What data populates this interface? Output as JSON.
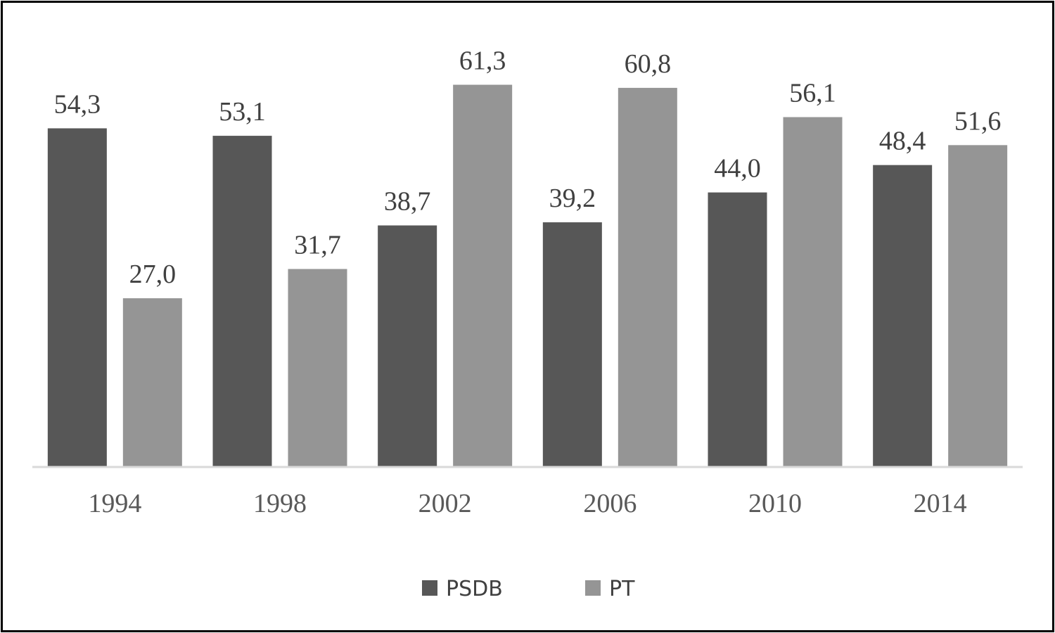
{
  "chart_data": {
    "type": "bar",
    "categories": [
      "1994",
      "1998",
      "2002",
      "2006",
      "2010",
      "2014"
    ],
    "series": [
      {
        "name": "PSDB",
        "color": "#575757",
        "values": [
          54.3,
          53.1,
          38.7,
          39.2,
          44.0,
          48.4
        ],
        "labels": [
          "54,3",
          "53,1",
          "38,7",
          "39,2",
          "44,0",
          "48,4"
        ]
      },
      {
        "name": "PT",
        "color": "#959595",
        "values": [
          27.0,
          31.7,
          61.3,
          60.8,
          56.1,
          51.6
        ],
        "labels": [
          "27,0",
          "31,7",
          "61,3",
          "60,8",
          "56,1",
          "51,6"
        ]
      }
    ],
    "ylim": [
      0,
      70
    ],
    "grid": false,
    "legend_position": "bottom",
    "axis_color": "#d9d9d9"
  }
}
